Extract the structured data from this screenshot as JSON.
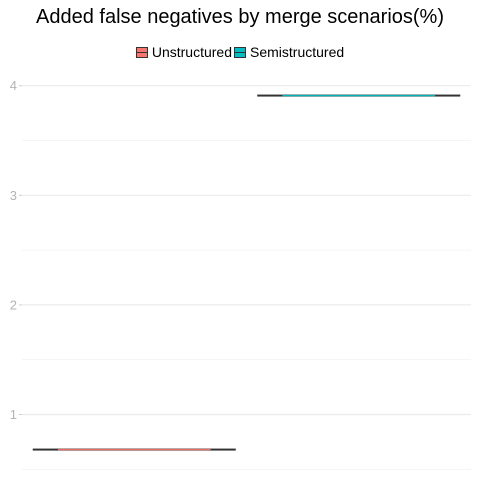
{
  "chart_data": {
    "type": "box",
    "title": "Added false negatives by merge scenarios(%)",
    "xlabel": "",
    "ylabel": "",
    "ylim": [
      0.5,
      4.05
    ],
    "y_ticks": [
      1,
      2,
      3,
      4
    ],
    "grid": true,
    "legend_position": "top",
    "series": [
      {
        "name": "Unstructured",
        "color": "#f8766d",
        "min": 0.68,
        "q1": 0.68,
        "median": 0.68,
        "q3": 0.68,
        "max": 0.68
      },
      {
        "name": "Semistructured",
        "color": "#00bfc4",
        "min": 3.91,
        "q1": 3.91,
        "median": 3.91,
        "q3": 3.91,
        "max": 3.91
      }
    ]
  }
}
